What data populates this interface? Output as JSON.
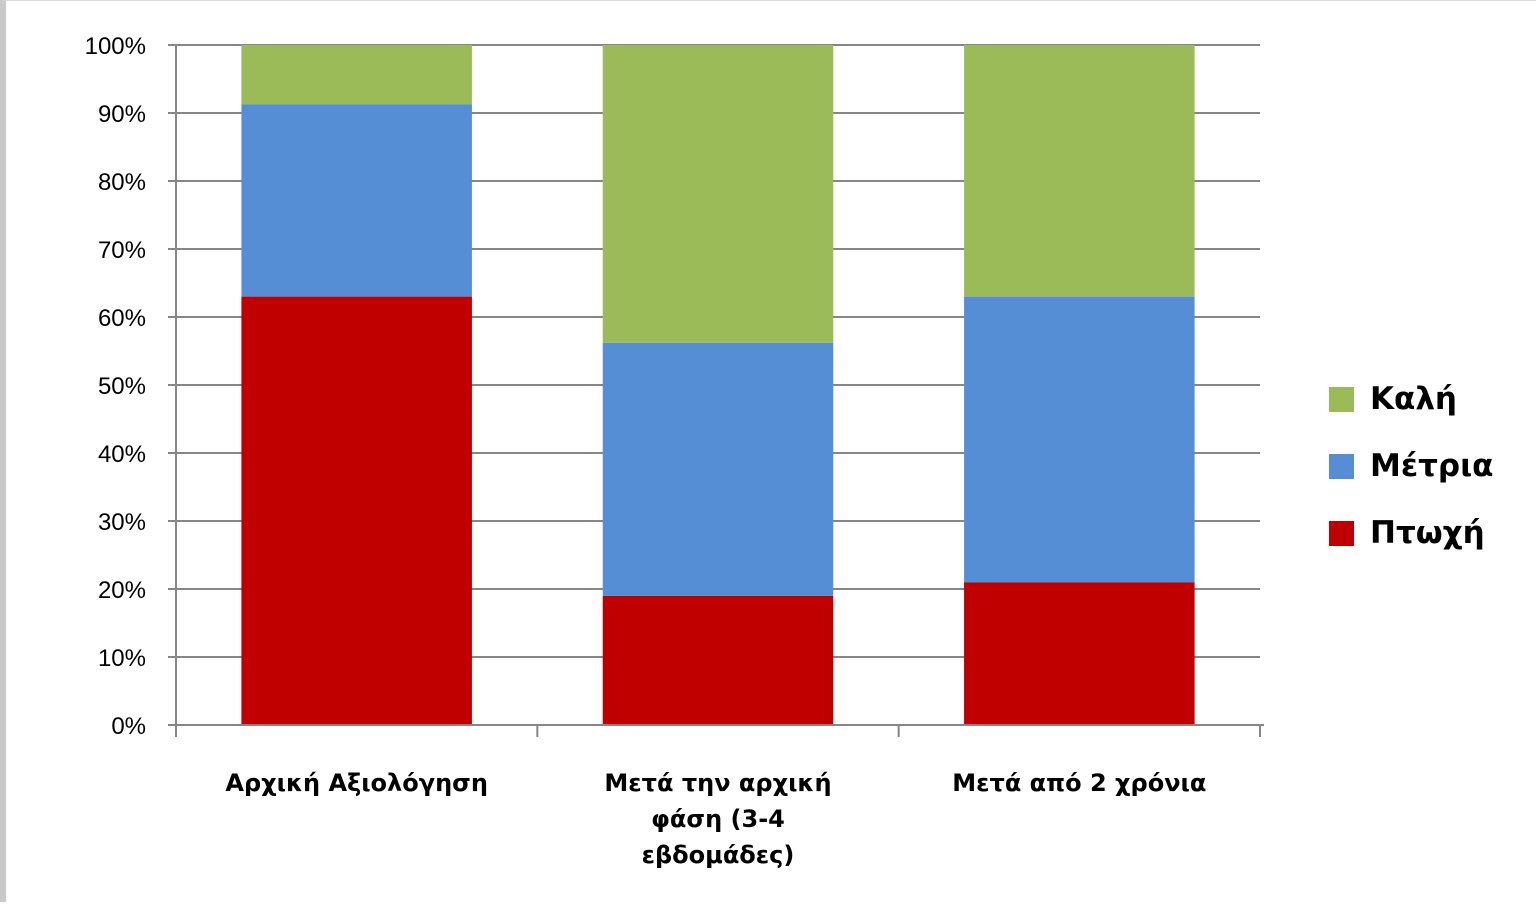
{
  "chart_data": {
    "type": "bar",
    "stacked": true,
    "percent_stacked": true,
    "categories": [
      [
        "Αρχική Αξιολόγηση"
      ],
      [
        "Μετά την αρχική",
        "φάση (3-4",
        "εβδομάδες)"
      ],
      [
        "Μετά από 2 χρόνια"
      ]
    ],
    "series": [
      {
        "name": "Πτωχή",
        "color": "#c00000",
        "values": [
          63,
          19,
          21
        ]
      },
      {
        "name": "Μέτρια",
        "color": "#558ed5",
        "values": [
          28.3,
          37.2,
          42
        ]
      },
      {
        "name": "Καλή",
        "color": "#9bbb59",
        "values": [
          8.7,
          43.8,
          37
        ]
      }
    ],
    "y_ticks": [
      "0%",
      "10%",
      "20%",
      "30%",
      "40%",
      "50%",
      "60%",
      "70%",
      "80%",
      "90%",
      "100%"
    ],
    "ylim": [
      0,
      100
    ],
    "grid": true,
    "legend": {
      "position": "right",
      "order": [
        "Καλή",
        "Μέτρια",
        "Πτωχή"
      ]
    }
  }
}
